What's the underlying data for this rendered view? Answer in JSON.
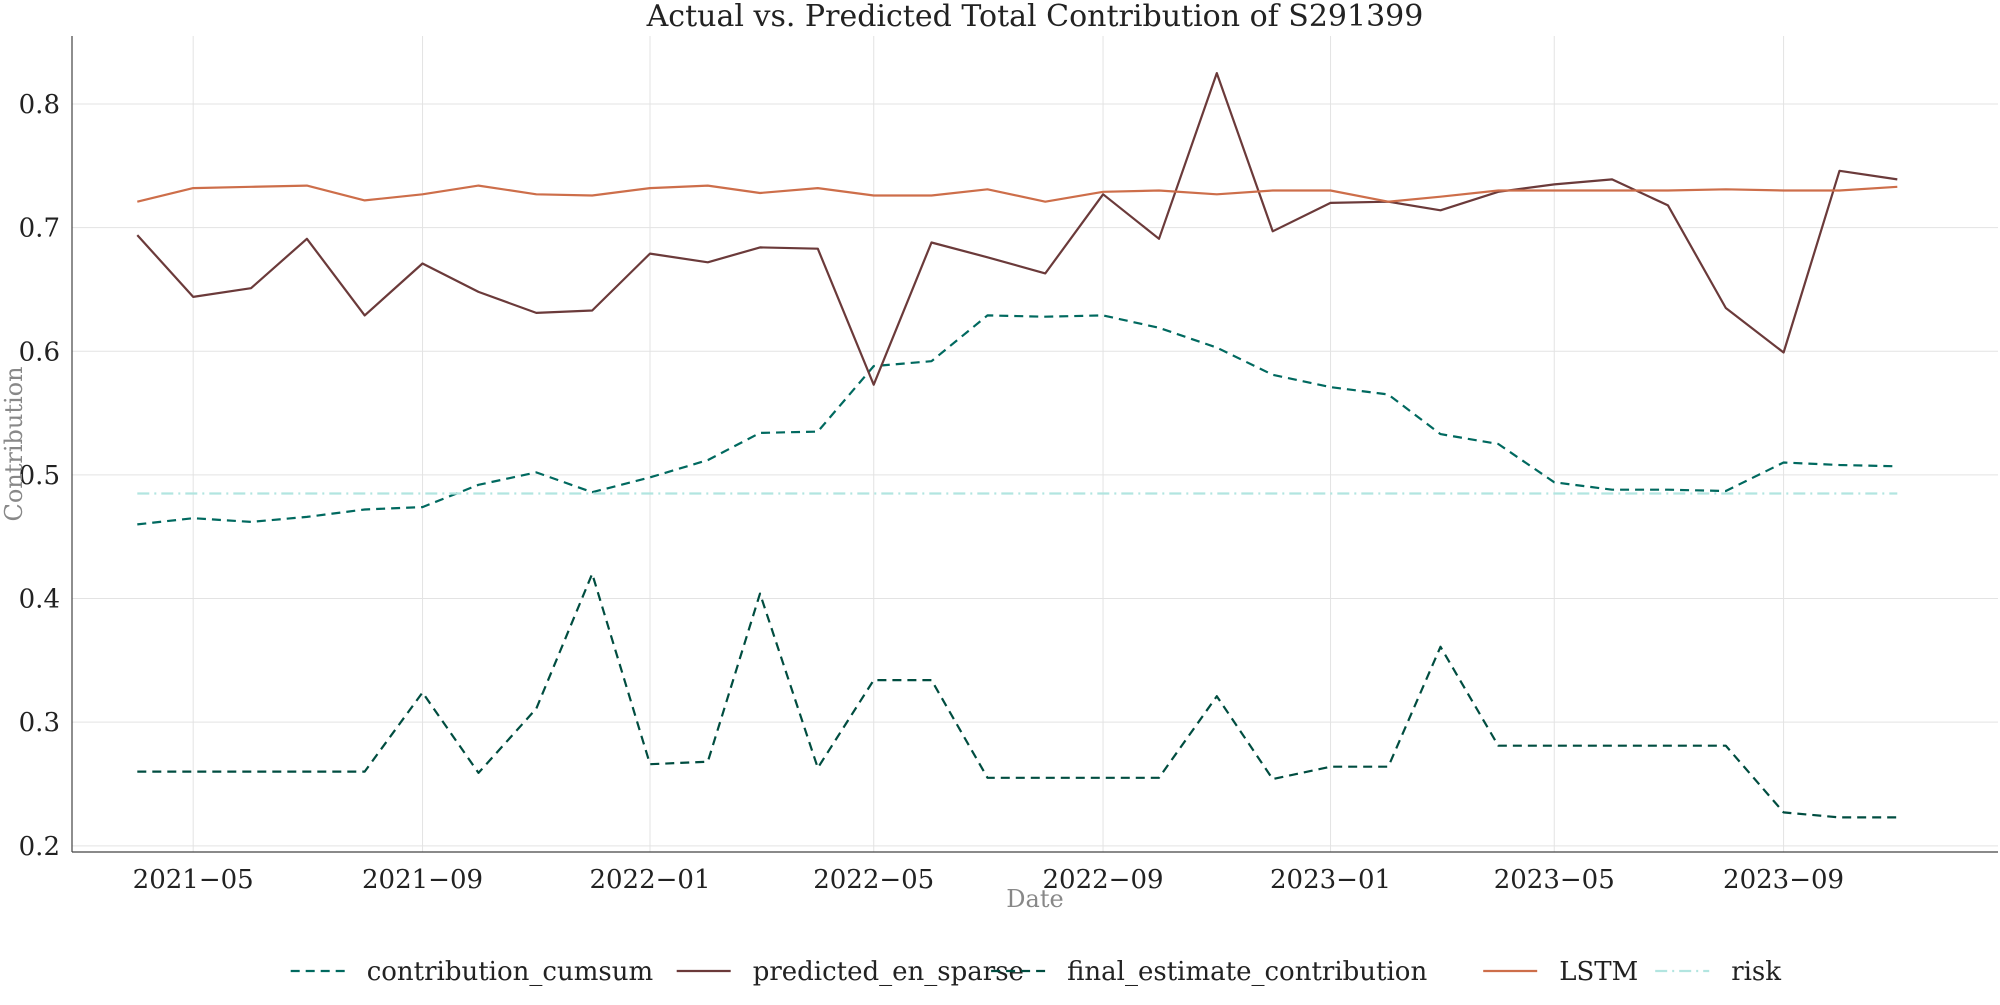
{
  "chart_data": {
    "type": "line",
    "title": "Actual vs. Predicted Total Contribution of S291399",
    "xlabel": "Date",
    "ylabel": "Contribution",
    "ylim": [
      0.195,
      0.855
    ],
    "xlim": [
      "2021-02-25",
      "2023-12-25"
    ],
    "grid": true,
    "legend_position": "bottom-center",
    "x_tick_labels": [
      "2021−05",
      "2021−09",
      "2022−01",
      "2022−05",
      "2022−09",
      "2023−01",
      "2023−05",
      "2023−09"
    ],
    "x_ticks": [
      "2021-05-01",
      "2021-09-01",
      "2022-01-01",
      "2022-05-01",
      "2022-09-01",
      "2023-01-01",
      "2023-05-01",
      "2023-09-01"
    ],
    "y_ticks": [
      0.2,
      0.3,
      0.4,
      0.5,
      0.6,
      0.7,
      0.8
    ],
    "y_tick_labels": [
      "0.2",
      "0.3",
      "0.4",
      "0.5",
      "0.6",
      "0.7",
      "0.8"
    ],
    "x": [
      "2021-04-01",
      "2021-05-01",
      "2021-06-01",
      "2021-07-01",
      "2021-08-01",
      "2021-09-01",
      "2021-10-01",
      "2021-11-01",
      "2021-12-01",
      "2022-01-01",
      "2022-02-01",
      "2022-03-01",
      "2022-04-01",
      "2022-05-01",
      "2022-06-01",
      "2022-07-01",
      "2022-08-01",
      "2022-09-01",
      "2022-10-01",
      "2022-11-01",
      "2022-12-01",
      "2023-01-01",
      "2023-02-01",
      "2023-03-01",
      "2023-04-01",
      "2023-05-01",
      "2023-06-01",
      "2023-07-01",
      "2023-08-01",
      "2023-09-01",
      "2023-10-01",
      "2023-11-01"
    ],
    "series": [
      {
        "name": "contribution_cumsum",
        "color": "#00695f",
        "style": "dashed",
        "values": [
          0.46,
          0.465,
          0.462,
          0.466,
          0.472,
          0.474,
          0.492,
          0.502,
          0.486,
          0.498,
          0.512,
          0.534,
          0.535,
          0.588,
          0.592,
          0.629,
          0.628,
          0.629,
          0.619,
          0.603,
          0.581,
          0.571,
          0.565,
          0.533,
          0.525,
          0.494,
          0.488,
          0.488,
          0.487,
          0.51,
          0.508,
          0.507
        ]
      },
      {
        "name": "predicted_en_sparse",
        "color": "#6b3a3a",
        "style": "solid",
        "values": [
          0.694,
          0.644,
          0.651,
          0.691,
          0.629,
          0.671,
          0.648,
          0.631,
          0.633,
          0.679,
          0.672,
          0.684,
          0.683,
          0.573,
          0.688,
          0.676,
          0.663,
          0.727,
          0.691,
          0.825,
          0.697,
          0.72,
          0.721,
          0.714,
          0.729,
          0.735,
          0.739,
          0.718,
          0.635,
          0.599,
          0.746,
          0.739
        ]
      },
      {
        "name": "final_estimate_contribution",
        "color": "#004d40",
        "style": "dashed",
        "values": [
          0.26,
          0.26,
          0.26,
          0.26,
          0.26,
          0.324,
          0.259,
          0.311,
          0.42,
          0.266,
          0.268,
          0.404,
          0.263,
          0.334,
          0.334,
          0.255,
          0.255,
          0.255,
          0.255,
          0.321,
          0.254,
          0.264,
          0.264,
          0.361,
          0.281,
          0.281,
          0.281,
          0.281,
          0.281,
          0.227,
          0.223,
          0.223
        ]
      },
      {
        "name": "LSTM",
        "color": "#cd6e4a",
        "style": "solid",
        "values": [
          0.721,
          0.732,
          0.733,
          0.734,
          0.722,
          0.727,
          0.734,
          0.727,
          0.726,
          0.732,
          0.734,
          0.728,
          0.732,
          0.726,
          0.726,
          0.731,
          0.721,
          0.729,
          0.73,
          0.727,
          0.73,
          0.73,
          0.721,
          0.725,
          0.73,
          0.73,
          0.73,
          0.73,
          0.731,
          0.73,
          0.73,
          0.733
        ]
      },
      {
        "name": "risk",
        "color": "#b2e5e0",
        "style": "dashdot",
        "values": [
          0.485,
          0.485,
          0.485,
          0.485,
          0.485,
          0.485,
          0.485,
          0.485,
          0.485,
          0.485,
          0.485,
          0.485,
          0.485,
          0.485,
          0.485,
          0.485,
          0.485,
          0.485,
          0.485,
          0.485,
          0.485,
          0.485,
          0.485,
          0.485,
          0.485,
          0.485,
          0.485,
          0.485,
          0.485,
          0.485,
          0.485,
          0.485
        ]
      }
    ]
  }
}
